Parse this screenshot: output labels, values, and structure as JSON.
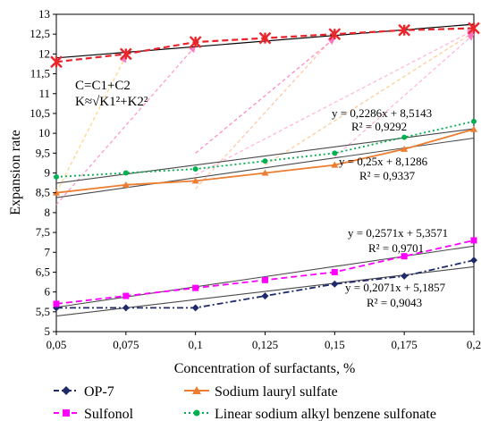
{
  "chart_data": {
    "type": "line",
    "xlabel": "Concentration of surfactants, %",
    "ylabel": "Expansion rate",
    "x": [
      0.05,
      0.075,
      0.1,
      0.125,
      0.15,
      0.175,
      0.2
    ],
    "x_tick_labels": [
      "0,05",
      "0,075",
      "0,1",
      "0,125",
      "0,15",
      "0,175",
      "0,2"
    ],
    "xlim": [
      0.05,
      0.2
    ],
    "ylim": [
      5,
      13
    ],
    "y_ticks": [
      5,
      5.5,
      6,
      6.5,
      7,
      7.5,
      8,
      8.5,
      9,
      9.5,
      10,
      10.5,
      11,
      11.5,
      12,
      12.5,
      13
    ],
    "y_tick_labels": [
      "5",
      "5,5",
      "6",
      "6,5",
      "7",
      "7,5",
      "8",
      "8,5",
      "9",
      "9,5",
      "10",
      "10,5",
      "11",
      "11,5",
      "12",
      "12,5",
      "13"
    ],
    "grid": false,
    "legend_position": "bottom",
    "series": [
      {
        "name": "OP-7",
        "color": "#1f2a6b",
        "dash": "dash-dot",
        "marker": "diamond",
        "values": [
          5.6,
          5.6,
          5.6,
          5.9,
          6.2,
          6.4,
          6.8
        ],
        "trend": {
          "slope_per_step": 0.2071,
          "intercept": 5.1857,
          "equation": "y = 0,2071x + 5,1857",
          "r2": "R² = 0,9043"
        }
      },
      {
        "name": "Sodium lauryl sulfate",
        "color": "#ed7d31",
        "dash": "solid",
        "marker": "triangle",
        "values": [
          8.5,
          8.7,
          8.8,
          9.0,
          9.2,
          9.6,
          10.1
        ],
        "trend": {
          "slope_per_step": 0.25,
          "intercept": 8.1286,
          "equation": "y = 0,25x + 8,1286",
          "r2": "R² = 0,9337"
        }
      },
      {
        "name": "Sulfonol",
        "color": "#ff00ff",
        "dash": "dash",
        "marker": "square",
        "values": [
          5.7,
          5.9,
          6.1,
          6.3,
          6.5,
          6.9,
          7.3
        ],
        "trend": {
          "slope_per_step": 0.2571,
          "intercept": 5.3571,
          "equation": "y = 0,2571x + 5,3571",
          "r2": "R² = 0,9701"
        }
      },
      {
        "name": "Linear sodium alkyl benzene sulfonate",
        "color": "#00b050",
        "dash": "dot",
        "marker": "circle",
        "values": [
          8.9,
          9.0,
          9.1,
          9.3,
          9.5,
          9.9,
          10.3
        ],
        "trend": {
          "slope_per_step": 0.2286,
          "intercept": 8.5143,
          "equation": "y = 0,2286x + 8,5143",
          "r2": "R² = 0,9292"
        }
      },
      {
        "name": "",
        "color": "#e8262b",
        "dash": "dash",
        "marker": "star",
        "values": [
          11.8,
          12.0,
          12.3,
          12.4,
          12.5,
          12.6,
          12.65
        ],
        "fit_line": {
          "start": 11.9,
          "end": 12.75
        }
      }
    ],
    "formula_box": [
      "C=C1+C2",
      "K≈√K1²+K2²"
    ],
    "annotations": [
      {
        "series": "Linear sodium alkyl benzene sulfonate",
        "equation": "y = 0,2286x + 8,5143",
        "r2": "R² = 0,9292"
      },
      {
        "series": "Sodium lauryl sulfate",
        "equation": "y = 0,25x + 8,1286",
        "r2": "R² = 0,9337"
      },
      {
        "series": "Sulfonol",
        "equation": "y = 0,2571x + 5,3571",
        "r2": "R² = 0,9701"
      },
      {
        "series": "OP-7",
        "equation": "y = 0,2071x + 5,1857",
        "r2": "R² = 0,9043"
      }
    ],
    "combination_arrows": [
      {
        "from_x": 0.05,
        "from_y": 8.2,
        "to_x": 0.1,
        "to_y": 12.2,
        "color": "#ff8fc8"
      },
      {
        "from_x": 0.05,
        "from_y": 8.5,
        "to_x": 0.075,
        "to_y": 11.95,
        "color": "#ffd27f"
      },
      {
        "from_x": 0.1,
        "from_y": 8.6,
        "to_x": 0.15,
        "to_y": 12.45,
        "color": "#ffc0a0"
      },
      {
        "from_x": 0.1,
        "from_y": 8.95,
        "to_x": 0.2,
        "to_y": 12.6,
        "color": "#ffb0d8"
      },
      {
        "from_x": 0.125,
        "from_y": 9.2,
        "to_x": 0.2,
        "to_y": 12.55,
        "color": "#ffc890"
      },
      {
        "from_x": 0.15,
        "from_y": 9.4,
        "to_x": 0.2,
        "to_y": 12.5,
        "color": "#ffb0d8"
      },
      {
        "from_x": 0.1,
        "from_y": 9.5,
        "to_x": 0.15,
        "to_y": 12.4,
        "color": "#ff7fc0"
      }
    ]
  }
}
